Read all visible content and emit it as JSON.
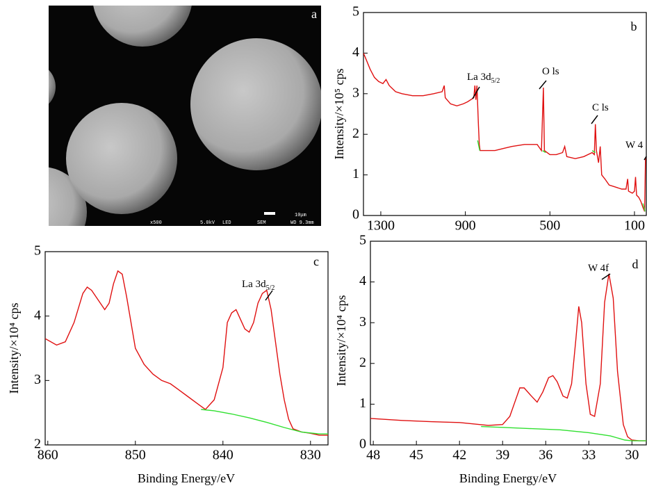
{
  "image": {
    "label": "a",
    "info": [
      "x500",
      "5.0kV",
      "LED",
      "SEM",
      "WD 9.3mm"
    ],
    "scale": "10μm"
  },
  "chart_data": [
    {
      "type": "line",
      "panel_label": "b",
      "y_label": "Intensity/×10⁵ cps",
      "xlim": [
        1382,
        44
      ],
      "xticks": [
        1300,
        900,
        500,
        100
      ],
      "ylim": [
        0,
        5
      ],
      "yticks": [
        0,
        1,
        2,
        3,
        4,
        5
      ],
      "annotations": [
        {
          "text": "La 3d",
          "sub": "5/2"
        },
        {
          "text": "O ls"
        },
        {
          "text": "C ls"
        },
        {
          "text": "W 4"
        }
      ],
      "series": [
        {
          "color": "#e01010",
          "x": [
            1382,
            1370,
            1350,
            1330,
            1310,
            1290,
            1275,
            1260,
            1230,
            1200,
            1150,
            1100,
            1050,
            1010,
            1000,
            995,
            970,
            940,
            910,
            890,
            860,
            855,
            850,
            845,
            838,
            834,
            830,
            800,
            760,
            720,
            680,
            620,
            560,
            540,
            531,
            526,
            500,
            470,
            440,
            430,
            420,
            380,
            340,
            300,
            290,
            285,
            280,
            270,
            262,
            255,
            240,
            220,
            190,
            160,
            140,
            132,
            128,
            110,
            100,
            95,
            90,
            80,
            70,
            60,
            52,
            48,
            44
          ],
          "values": [
            4.0,
            3.85,
            3.6,
            3.4,
            3.3,
            3.25,
            3.35,
            3.2,
            3.05,
            3.0,
            2.95,
            2.95,
            3.0,
            3.05,
            3.2,
            2.9,
            2.75,
            2.7,
            2.75,
            2.8,
            2.9,
            3.2,
            2.85,
            3.2,
            2.2,
            1.75,
            1.6,
            1.6,
            1.6,
            1.65,
            1.7,
            1.75,
            1.75,
            1.6,
            3.15,
            1.6,
            1.5,
            1.5,
            1.55,
            1.7,
            1.45,
            1.4,
            1.45,
            1.55,
            1.5,
            2.25,
            1.6,
            1.3,
            1.7,
            1.0,
            0.9,
            0.75,
            0.7,
            0.65,
            0.65,
            0.9,
            0.6,
            0.55,
            0.6,
            0.95,
            0.5,
            0.45,
            0.35,
            0.2,
            0.1,
            1.4,
            1.45
          ]
        },
        {
          "color": "#30e030",
          "x": [
            842,
            832,
            820,
            535,
            520,
            505,
            300,
            285,
            270,
            60,
            50
          ],
          "values": [
            1.85,
            1.6,
            null,
            1.6,
            1.55,
            null,
            1.6,
            1.55,
            null,
            0.3,
            0.1
          ]
        }
      ]
    },
    {
      "type": "line",
      "panel_label": "c",
      "y_label": "Intensity/×10⁴ cps",
      "x_label": "Binding Energy/eV",
      "xlim": [
        860.3,
        828
      ],
      "xticks": [
        860,
        850,
        840,
        830
      ],
      "ylim": [
        2,
        5
      ],
      "yticks": [
        2,
        3,
        4,
        5
      ],
      "annotations": [
        {
          "text": "La 3d",
          "sub": "5/2"
        }
      ],
      "series": [
        {
          "color": "#e01010",
          "x": [
            860.3,
            859,
            858,
            857,
            856,
            855.5,
            855,
            854,
            853.5,
            853,
            852.5,
            852,
            851.5,
            851,
            850.5,
            850,
            849,
            848,
            847,
            846,
            845,
            844,
            843,
            842.5,
            842,
            841,
            840,
            839.5,
            839,
            838.5,
            838,
            837.5,
            837,
            836.5,
            836,
            835.5,
            835,
            834.5,
            834,
            833.5,
            833,
            832.5,
            832,
            831,
            830,
            829,
            828
          ],
          "values": [
            3.65,
            3.55,
            3.6,
            3.9,
            4.35,
            4.45,
            4.4,
            4.2,
            4.1,
            4.2,
            4.5,
            4.7,
            4.65,
            4.3,
            3.9,
            3.5,
            3.25,
            3.1,
            3.0,
            2.95,
            2.85,
            2.75,
            2.65,
            2.6,
            2.55,
            2.7,
            3.2,
            3.9,
            4.05,
            4.1,
            3.95,
            3.8,
            3.75,
            3.9,
            4.2,
            4.35,
            4.4,
            4.1,
            3.6,
            3.1,
            2.7,
            2.4,
            2.25,
            2.2,
            2.18,
            2.15,
            2.15
          ]
        },
        {
          "color": "#30e030",
          "x": [
            842.5,
            841,
            839,
            837,
            835,
            833,
            831,
            829,
            828
          ],
          "values": [
            2.55,
            2.53,
            2.48,
            2.42,
            2.35,
            2.27,
            2.2,
            2.17,
            2.17
          ]
        }
      ]
    },
    {
      "type": "line",
      "panel_label": "d",
      "y_label": "Intensity/×10⁴ cps",
      "x_label": "Binding Energy/eV",
      "xlim": [
        48.2,
        29
      ],
      "xticks": [
        48,
        45,
        42,
        39,
        36,
        33,
        30
      ],
      "ylim": [
        0,
        5
      ],
      "yticks": [
        0,
        1,
        2,
        3,
        4,
        5
      ],
      "annotations": [
        {
          "text": "W 4f"
        }
      ],
      "series": [
        {
          "color": "#e01010",
          "x": [
            48.2,
            46,
            44,
            42,
            40,
            39,
            38.5,
            38,
            37.8,
            37.5,
            37,
            36.6,
            36.2,
            35.8,
            35.5,
            35.2,
            34.8,
            34.5,
            34.2,
            33.9,
            33.7,
            33.5,
            33.2,
            32.9,
            32.6,
            32.2,
            31.9,
            31.6,
            31.3,
            31.0,
            30.6,
            30.3,
            30,
            29.5,
            29
          ],
          "values": [
            0.65,
            0.6,
            0.57,
            0.55,
            0.48,
            0.5,
            0.7,
            1.2,
            1.4,
            1.4,
            1.2,
            1.05,
            1.3,
            1.65,
            1.7,
            1.55,
            1.2,
            1.15,
            1.5,
            2.6,
            3.4,
            3.0,
            1.5,
            0.75,
            0.7,
            1.5,
            3.5,
            4.2,
            3.6,
            1.8,
            0.5,
            0.2,
            0.12,
            0.1,
            0.1
          ]
        },
        {
          "color": "#30e030",
          "x": [
            40.5,
            39,
            37,
            35,
            33,
            31.5,
            30.5,
            30,
            29
          ],
          "values": [
            0.45,
            0.43,
            0.4,
            0.37,
            0.3,
            0.22,
            0.12,
            0.1,
            0.1
          ]
        }
      ]
    }
  ]
}
